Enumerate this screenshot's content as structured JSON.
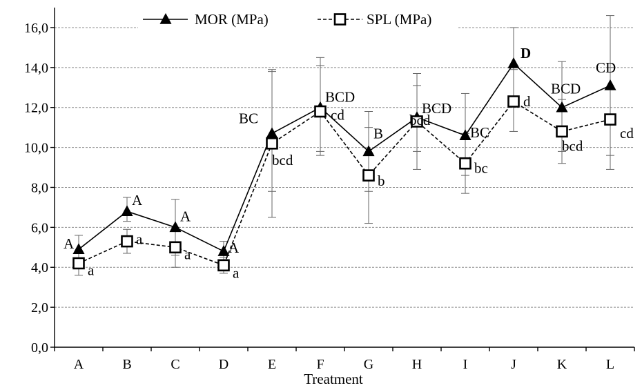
{
  "chart_data": {
    "type": "line",
    "xlabel": "Treatment",
    "ylabel": "",
    "ylim": [
      0,
      17
    ],
    "yticks": [
      "0,0",
      "2,0",
      "4,0",
      "6,0",
      "8,0",
      "10,0",
      "12,0",
      "14,0",
      "16,0"
    ],
    "ytick_values": [
      0,
      2,
      4,
      6,
      8,
      10,
      12,
      14,
      16
    ],
    "categories": [
      "A",
      "B",
      "C",
      "D",
      "E",
      "F",
      "G",
      "H",
      "I",
      "J",
      "K",
      "L"
    ],
    "grid": "horizontal dashed",
    "legend_position": "top",
    "series": [
      {
        "name": "MOR (MPa)",
        "marker": "filled-triangle",
        "line_style": "solid",
        "values": [
          4.9,
          6.8,
          6.0,
          4.8,
          10.7,
          12.0,
          9.8,
          11.5,
          10.6,
          14.2,
          12.0,
          13.1
        ],
        "err_low": [
          4.3,
          6.3,
          4.6,
          4.3,
          7.8,
          9.8,
          7.8,
          9.8,
          8.6,
          12.5,
          9.8,
          9.6
        ],
        "err_high": [
          5.6,
          7.5,
          7.4,
          5.3,
          13.8,
          14.5,
          11.8,
          13.7,
          12.7,
          16.0,
          14.3,
          16.6
        ],
        "labels": [
          "A",
          "A",
          "A",
          "A",
          "BC",
          "BCD",
          "B",
          "BCD",
          "BC",
          "D",
          "BCD",
          "CD"
        ]
      },
      {
        "name": "SPL (MPa)",
        "marker": "open-square",
        "line_style": "dashed",
        "values": [
          4.2,
          5.3,
          5.0,
          4.1,
          10.2,
          11.8,
          8.6,
          11.3,
          9.2,
          12.3,
          10.8,
          11.4
        ],
        "err_low": [
          3.6,
          4.7,
          4.0,
          3.7,
          6.5,
          9.6,
          6.2,
          8.9,
          7.7,
          10.8,
          9.2,
          8.9
        ],
        "err_high": [
          4.8,
          5.9,
          6.0,
          4.5,
          13.9,
          14.1,
          11.0,
          13.1,
          10.7,
          13.9,
          12.4,
          14.0
        ],
        "labels": [
          "a",
          "a",
          "a",
          "a",
          "bcd",
          "cd",
          "b",
          "bcd",
          "bc",
          "d",
          "bcd",
          "cd"
        ]
      }
    ]
  }
}
